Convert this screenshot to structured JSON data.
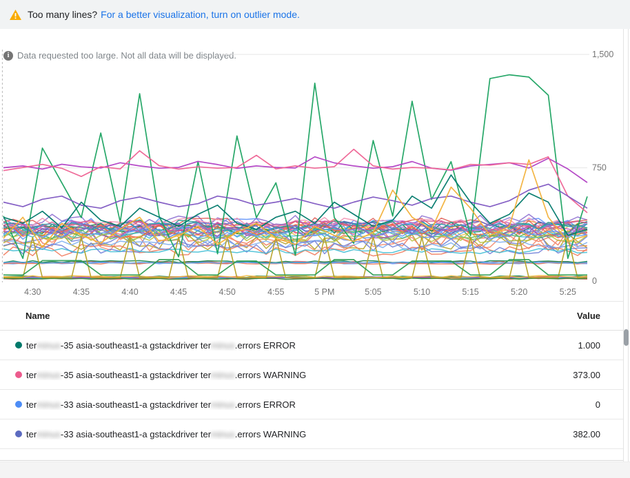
{
  "banner": {
    "warning_text": "Too many lines?",
    "link_text": "For a better visualization, turn on outlier mode.",
    "warning_color": "#f9ab00",
    "link_color": "#1a73e8"
  },
  "info": {
    "text": "Data requested too large. Not all data will be displayed."
  },
  "legend": {
    "columns": [
      "Name",
      "Value"
    ],
    "rows": [
      {
        "dot_color": "#00796b",
        "name_parts": [
          "ter",
          "minus",
          "-35 asia-southeast1-a gstackdriver ter",
          "minus",
          ".errors ERROR"
        ],
        "value": "1.000"
      },
      {
        "dot_color": "#ec5b8d",
        "name_parts": [
          "ter",
          "minus",
          "-35 asia-southeast1-a gstackdriver ter",
          "minus",
          ".errors WARNING"
        ],
        "value": "373.00"
      },
      {
        "dot_color": "#4d8df6",
        "name_parts": [
          "ter",
          "minus",
          "-33 asia-southeast1-a gstackdriver ter",
          "minus",
          ".errors ERROR"
        ],
        "value": "0"
      },
      {
        "dot_color": "#5c6bc0",
        "name_parts": [
          "ter",
          "minus",
          "-33 asia-southeast1-a gstackdriver ter",
          "minus",
          ".errors WARNING"
        ],
        "value": "382.00"
      }
    ]
  },
  "chart_data": {
    "type": "line",
    "title": "",
    "xlabel": "",
    "ylabel": "",
    "ylim": [
      0,
      1500
    ],
    "y_tick_labels": [
      "0",
      "750",
      "1,500"
    ],
    "y_tick_values": [
      0,
      750,
      1500
    ],
    "x_tick_labels": [
      "4:30",
      "4:35",
      "4:40",
      "4:45",
      "4:50",
      "4:55",
      "5 PM",
      "5:05",
      "5:10",
      "5:15",
      "5:20",
      "5:25"
    ],
    "x_tick_minutes": [
      3,
      8,
      13,
      18,
      23,
      28,
      33,
      38,
      43,
      48,
      53,
      58
    ],
    "x_range_minutes": 60,
    "grid": "horizontal-only",
    "legend_position": "table-below",
    "series": [
      {
        "name": "green-spiky",
        "color": "#1aa260",
        "step_minutes": 2,
        "values": [
          430,
          150,
          880,
          650,
          420,
          980,
          390,
          1240,
          430,
          160,
          790,
          180,
          960,
          420,
          650,
          170,
          1310,
          420,
          250,
          930,
          430,
          1190,
          540,
          790,
          300,
          1340,
          1365,
          1350,
          1230,
          150,
          560
        ]
      },
      {
        "name": "magenta-750-band",
        "color": "#b13fc4",
        "step_minutes": 2,
        "values": [
          750,
          762,
          741,
          773,
          756,
          748,
          783,
          762,
          747,
          752,
          792,
          771,
          746,
          762,
          752,
          748,
          822,
          782,
          762,
          747,
          757,
          791,
          747,
          733,
          762,
          772,
          783,
          748,
          812,
          742,
          652
        ]
      },
      {
        "name": "pink-750-band",
        "color": "#ee6394",
        "step_minutes": 2,
        "values": [
          731,
          752,
          772,
          746,
          692,
          757,
          742,
          862,
          763,
          741,
          756,
          747,
          752,
          832,
          742,
          762,
          747,
          757,
          872,
          762,
          741,
          752,
          747,
          736,
          772,
          767,
          783,
          772,
          822,
          562,
          452
        ]
      },
      {
        "name": "purple-mid",
        "color": "#7e57c2",
        "step_minutes": 2,
        "values": [
          522,
          492,
          541,
          562,
          502,
          482,
          532,
          556,
          522,
          492,
          512,
          562,
          541,
          502,
          522,
          546,
          512,
          482,
          522,
          556,
          532,
          502,
          546,
          562,
          522,
          492,
          532,
          602,
          641,
          562,
          482
        ]
      },
      {
        "name": "teal-zigzag",
        "color": "#00796b",
        "step_minutes": 2,
        "values": [
          422,
          382,
          462,
          352,
          522,
          402,
          362,
          482,
          422,
          362,
          442,
          502,
          382,
          342,
          422,
          462,
          382,
          522,
          442,
          362,
          402,
          562,
          482,
          702,
          522,
          382,
          442,
          582,
          522,
          302,
          342
        ]
      },
      {
        "name": "yellow-zigzag",
        "color": "#f2b13a",
        "step_minutes": 2,
        "values": [
          282,
          422,
          222,
          382,
          302,
          252,
          342,
          422,
          262,
          302,
          362,
          242,
          322,
          382,
          282,
          242,
          362,
          302,
          262,
          322,
          602,
          422,
          342,
          622,
          482,
          302,
          362,
          802,
          422,
          262,
          302
        ]
      },
      {
        "name": "green-steps-low",
        "color": "#2f9e55",
        "step_minutes": 2,
        "values": [
          40,
          40,
          135,
          135,
          135,
          40,
          40,
          40,
          142,
          142,
          40,
          40,
          132,
          132,
          40,
          40,
          40,
          142,
          142,
          40,
          40,
          132,
          132,
          132,
          40,
          40,
          142,
          142,
          40,
          40,
          40
        ]
      }
    ],
    "spike_series": {
      "name": "olive-spikes",
      "color": "#b5a126",
      "base": 22,
      "peak": 290,
      "period_minutes": 5,
      "offset_minutes": 3
    },
    "cluster_series": [
      [
        "#e35d5b",
        345,
        45,
        11
      ],
      [
        "#f0795a",
        300,
        70,
        12
      ],
      [
        "#f59f3b",
        360,
        40,
        13
      ],
      [
        "#f2bd42",
        330,
        50,
        14
      ],
      [
        "#b5a126",
        262,
        60,
        15
      ],
      [
        "#4caf50",
        318,
        40,
        16
      ],
      [
        "#0b8043",
        352,
        45,
        17
      ],
      [
        "#3fbdd4",
        312,
        35,
        18
      ],
      [
        "#57a7f0",
        332,
        40,
        19
      ],
      [
        "#5b8ff9",
        372,
        45,
        20
      ],
      [
        "#6f7fd8",
        282,
        65,
        21
      ],
      [
        "#8b6cd0",
        402,
        50,
        22
      ],
      [
        "#c55bbc",
        362,
        40,
        23
      ],
      [
        "#ef6292",
        342,
        40,
        24
      ],
      [
        "#e05d56",
        382,
        40,
        25
      ],
      [
        "#f58a6e",
        252,
        55,
        26
      ],
      [
        "#f291b0",
        392,
        35,
        27
      ],
      [
        "#6dbd6f",
        302,
        40,
        28
      ],
      [
        "#1d9a8c",
        372,
        35,
        29
      ],
      [
        "#7badf0",
        242,
        30,
        30
      ],
      [
        "#5566c4",
        352,
        45,
        31
      ],
      [
        "#a052b8",
        322,
        40,
        32
      ],
      [
        "#d6568c",
        365,
        40,
        33
      ],
      [
        "#ef6a3e",
        330,
        45,
        34
      ],
      [
        "#b9c23f",
        292,
        40,
        35
      ],
      [
        "#2aa4b8",
        356,
        30,
        36
      ],
      [
        "#5e97f6",
        310,
        35,
        37
      ],
      [
        "#9575cd",
        340,
        40,
        38
      ],
      [
        "#f0795a",
        205,
        40,
        39
      ],
      [
        "#6f7fd8",
        222,
        45,
        40
      ],
      [
        "#3fbdd4",
        200,
        18,
        41
      ]
    ],
    "tight_band_series": [
      [
        "#e05d56",
        124,
        7,
        51
      ],
      [
        "#5b8ff9",
        120,
        6,
        52
      ],
      [
        "#0b8043",
        128,
        7,
        53
      ],
      [
        "#f0795a",
        117,
        6,
        54
      ],
      [
        "#57a7f0",
        122,
        5,
        55
      ]
    ],
    "bottom_band_series": [
      [
        "#0b8043",
        28,
        6,
        61
      ],
      [
        "#5b8ff9",
        22,
        5,
        62
      ],
      [
        "#e05d56",
        17,
        5,
        63
      ],
      [
        "#f0795a",
        25,
        6,
        64
      ],
      [
        "#3fbdd4",
        20,
        5,
        65
      ],
      [
        "#a052b8",
        24,
        5,
        66
      ],
      [
        "#2e7d32",
        15,
        4,
        67
      ],
      [
        "#f2bd42",
        30,
        6,
        68
      ]
    ]
  }
}
